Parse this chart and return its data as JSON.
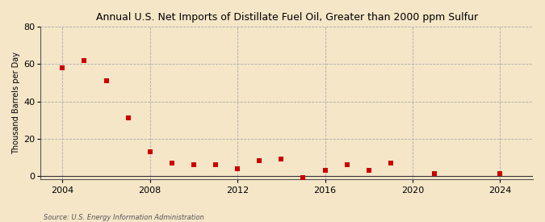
{
  "title": "Annual U.S. Net Imports of Distillate Fuel Oil, Greater than 2000 ppm Sulfur",
  "ylabel": "Thousand Barrels per Day",
  "source": "Source: U.S. Energy Information Administration",
  "background_color": "#f5e6c8",
  "plot_background_color": "#f5e6c8",
  "marker_color": "#cc0000",
  "marker_style": "s",
  "marker_size": 5,
  "xlim": [
    2003.0,
    2025.5
  ],
  "ylim": [
    -2,
    80
  ],
  "yticks": [
    0,
    20,
    40,
    60,
    80
  ],
  "xticks": [
    2004,
    2008,
    2012,
    2016,
    2020,
    2024
  ],
  "grid_color": "#aaaaaa",
  "grid_style": "--",
  "years": [
    2004,
    2005,
    2006,
    2007,
    2008,
    2009,
    2010,
    2011,
    2012,
    2013,
    2014,
    2015,
    2016,
    2017,
    2018,
    2019,
    2021,
    2024
  ],
  "values": [
    58,
    62,
    51,
    31,
    13,
    7,
    6,
    6,
    4,
    8,
    9,
    -1,
    3,
    6,
    3,
    7,
    1,
    1
  ]
}
